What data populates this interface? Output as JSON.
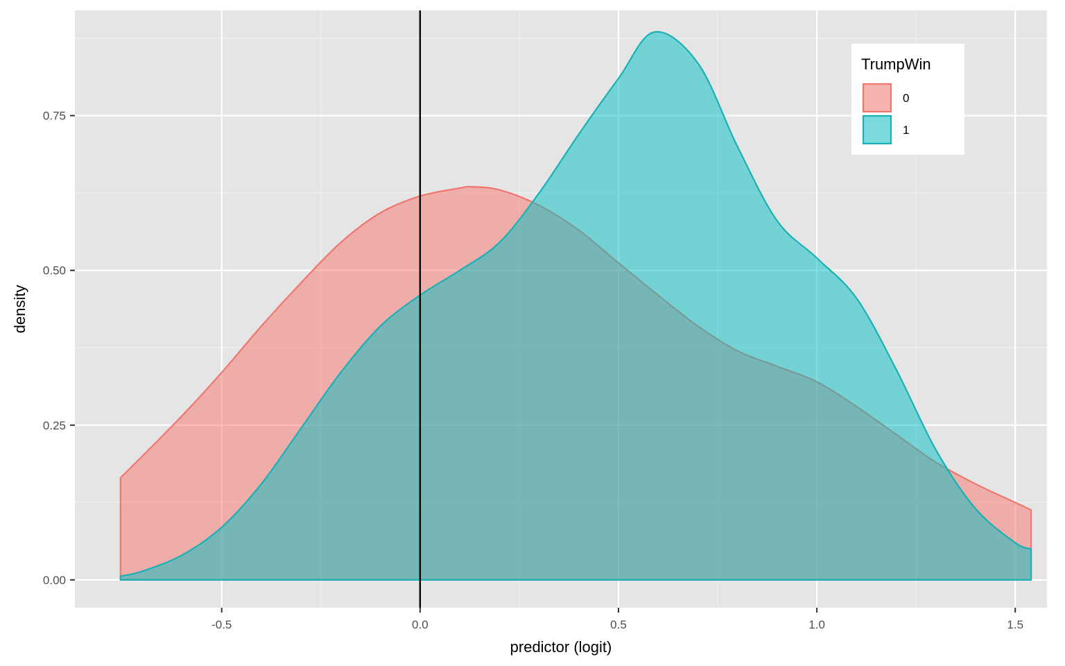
{
  "chart_data": {
    "type": "area",
    "xlabel": "predictor (logit)",
    "ylabel": "density",
    "xlim": [
      -0.87,
      1.58
    ],
    "ylim": [
      -0.045,
      0.92
    ],
    "x_ticks": [
      -0.5,
      0.0,
      0.5,
      1.0,
      1.5
    ],
    "x_tick_labels": [
      "-0.5",
      "0.0",
      "0.5",
      "1.0",
      "1.5"
    ],
    "y_ticks": [
      0.0,
      0.25,
      0.5,
      0.75
    ],
    "y_tick_labels": [
      "0.00",
      "0.25",
      "0.50",
      "0.75"
    ],
    "x_minor": [
      -0.25,
      0.25,
      0.75,
      1.25
    ],
    "y_minor": [
      0.125,
      0.375,
      0.625,
      0.875
    ],
    "vline_x": 0.0,
    "grid": true,
    "panel_background": "#e5e5e5",
    "legend": {
      "title": "TrumpWin",
      "position": "top-right"
    },
    "series": [
      {
        "name": "0",
        "color": "#f0766d",
        "fill": "#f8766d",
        "x": [
          -0.755,
          -0.7,
          -0.6,
          -0.5,
          -0.4,
          -0.3,
          -0.2,
          -0.1,
          0.0,
          0.1,
          0.13,
          0.2,
          0.3,
          0.4,
          0.5,
          0.6,
          0.7,
          0.8,
          0.9,
          1.0,
          1.1,
          1.2,
          1.3,
          1.4,
          1.5,
          1.54
        ],
        "y": [
          0.165,
          0.2,
          0.265,
          0.335,
          0.41,
          0.48,
          0.545,
          0.593,
          0.62,
          0.633,
          0.635,
          0.63,
          0.605,
          0.565,
          0.512,
          0.46,
          0.41,
          0.37,
          0.345,
          0.32,
          0.28,
          0.235,
          0.19,
          0.155,
          0.125,
          0.113
        ]
      },
      {
        "name": "1",
        "color": "#19b0b6",
        "fill": "#00bfc4",
        "x": [
          -0.755,
          -0.7,
          -0.6,
          -0.5,
          -0.4,
          -0.3,
          -0.2,
          -0.1,
          0.0,
          0.1,
          0.2,
          0.3,
          0.4,
          0.5,
          0.59,
          0.7,
          0.8,
          0.9,
          1.0,
          1.1,
          1.2,
          1.3,
          1.4,
          1.5,
          1.54
        ],
        "y": [
          0.006,
          0.014,
          0.04,
          0.085,
          0.155,
          0.245,
          0.335,
          0.41,
          0.46,
          0.5,
          0.545,
          0.625,
          0.72,
          0.81,
          0.885,
          0.835,
          0.7,
          0.58,
          0.52,
          0.455,
          0.34,
          0.21,
          0.115,
          0.06,
          0.05
        ]
      }
    ]
  }
}
